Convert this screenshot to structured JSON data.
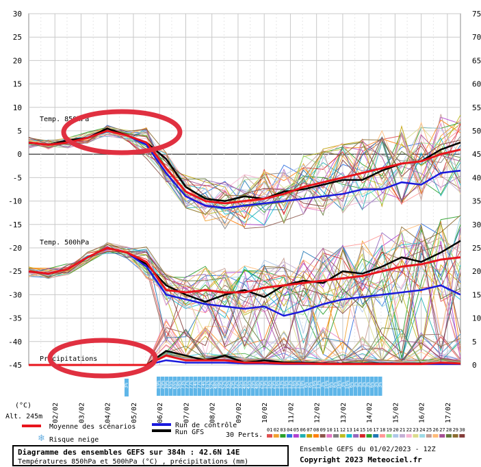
{
  "chart_data": {
    "type": "line",
    "x_start_day": 1,
    "x_dates": [
      "02/02",
      "03/02",
      "04/02",
      "05/02",
      "06/02",
      "07/02",
      "08/02",
      "09/02",
      "10/02",
      "11/02",
      "12/02",
      "13/02",
      "14/02",
      "15/02",
      "16/02",
      "17/02"
    ],
    "left_axis": {
      "ticks": [
        30,
        25,
        20,
        15,
        10,
        5,
        0,
        -5,
        -10,
        -15,
        -20,
        -25,
        -30,
        -35,
        -40,
        -45
      ],
      "ylim": [
        -45,
        30
      ]
    },
    "right_axis": {
      "ticks": [
        75,
        70,
        65,
        60,
        55,
        50,
        45,
        40,
        35,
        30,
        25,
        20,
        15,
        10,
        5,
        0
      ]
    },
    "labels": {
      "t850": "Temp. 850hPa",
      "t500": "Temp. 500hPa",
      "precip": "Précipitations",
      "unit": "(°C)",
      "altitude": "Alt. 245m"
    },
    "series": [
      {
        "name": "Moyenne des scénarios",
        "color": "#e8141c",
        "t850": [
          2.5,
          2.0,
          2.5,
          3.5,
          5.0,
          4.0,
          2.5,
          -3.0,
          -8.0,
          -10.0,
          -10.5,
          -10.0,
          -9.5,
          -8.5,
          -7.0,
          -6.0,
          -5.0,
          -4.0,
          -3.0,
          -2.0,
          -1.5,
          0.0,
          1.0
        ],
        "t500": [
          -25.0,
          -25.5,
          -24.5,
          -22.0,
          -20.0,
          -21.0,
          -23.0,
          -29.0,
          -29.5,
          -29.0,
          -29.5,
          -29.5,
          -28.5,
          -28.0,
          -27.5,
          -27.0,
          -26.5,
          -26.0,
          -25.0,
          -24.0,
          -23.5,
          -22.5,
          -22.0
        ],
        "precip": [
          0,
          0,
          0,
          0,
          0,
          0,
          0,
          2,
          1,
          1,
          1,
          0.5,
          0.5,
          0.3,
          0.3,
          0.2,
          0.2,
          0.2,
          0.2,
          0.2,
          0.2,
          0.5,
          0.3
        ]
      },
      {
        "name": "Run de contrôle",
        "color": "#1a1adc",
        "t850": [
          2.5,
          2.0,
          2.5,
          3.5,
          5.0,
          4.0,
          2.0,
          -4.0,
          -9.0,
          -11.0,
          -11.5,
          -11.0,
          -10.5,
          -10.0,
          -9.5,
          -9.0,
          -8.5,
          -7.5,
          -7.5,
          -6.0,
          -6.5,
          -4.0,
          -3.5
        ],
        "t500": [
          -25.0,
          -25.5,
          -24.5,
          -22.0,
          -20.0,
          -21.0,
          -24.0,
          -30.0,
          -31.0,
          -32.0,
          -32.5,
          -33.0,
          -32.5,
          -34.5,
          -33.5,
          -32.0,
          -31.0,
          -30.5,
          -30.0,
          -29.5,
          -29.0,
          -28.0,
          -30.0
        ],
        "precip": [
          0,
          0,
          0,
          0,
          0,
          0,
          0,
          1,
          0.5,
          0.5,
          0.5,
          0.3,
          0.3,
          0.2,
          0.2,
          0.2,
          0.2,
          0.2,
          0.2,
          0.2,
          0.2,
          0.2,
          0.2
        ]
      },
      {
        "name": "Run GFS",
        "color": "#000000",
        "t850": [
          2.5,
          2.0,
          3.0,
          3.5,
          5.5,
          4.0,
          2.5,
          -1.0,
          -7.0,
          -9.5,
          -10.0,
          -9.0,
          -9.5,
          -8.0,
          -7.5,
          -6.5,
          -5.5,
          -5.5,
          -3.5,
          -2.0,
          -1.5,
          1.0,
          2.5
        ],
        "t500": [
          -25.0,
          -25.5,
          -24.5,
          -22.0,
          -20.0,
          -21.0,
          -23.5,
          -28.0,
          -30.0,
          -31.5,
          -30.0,
          -29.0,
          -30.5,
          -28.0,
          -27.0,
          -27.5,
          -25.0,
          -25.5,
          -24.0,
          -22.0,
          -23.0,
          -21.0,
          -18.5
        ],
        "precip": [
          0,
          0,
          0,
          0,
          0,
          0,
          0,
          3,
          2,
          1,
          2,
          0.5,
          1,
          0.5,
          0.5,
          0.3,
          0.3,
          0.3,
          0.3,
          0.3,
          0.3,
          0.3,
          0.3
        ]
      }
    ],
    "perturbation_colors": [
      "#e05050",
      "#f0a030",
      "#2aa02a",
      "#3070e0",
      "#b040d0",
      "#20b0b0",
      "#c0a000",
      "#ff7f0e",
      "#8c564b",
      "#e377c2",
      "#7f7f7f",
      "#bcbd22",
      "#17becf",
      "#9467bd",
      "#d62728",
      "#2ca02c",
      "#1f77b4",
      "#ff9896",
      "#98df8a",
      "#aec7e8",
      "#c5b0d5",
      "#f7b6d2",
      "#dbdb8d",
      "#9edae5",
      "#c49c94",
      "#ffbb78",
      "#a55194",
      "#637939",
      "#8c6d31",
      "#843c39"
    ],
    "snow_risk_row1": [
      "19%",
      "29%",
      "39%",
      "45%",
      "65%",
      "58%",
      "73%",
      "77%",
      "77%",
      "74%",
      "77%",
      "74%",
      "61%",
      "52%",
      "48%",
      "39%",
      "52%",
      "35%",
      "29%",
      "32%",
      "35%",
      "48%",
      "45%",
      "39%",
      "48%",
      "29%",
      "19%",
      "16%",
      "29%",
      "16%",
      "13%",
      "16%",
      "13%",
      "16%",
      "19%",
      "10%",
      "6%",
      "6%",
      "16%",
      "13%",
      "3%",
      "16%",
      "6%",
      "6%",
      "16%",
      "3%",
      "16%",
      "6%",
      "3%",
      "3%",
      "3%",
      "3%",
      "6%",
      "3%",
      "3%"
    ],
    "snow_risk_row2_first": "3%",
    "legend": {
      "mean": "Moyenne des scénarios",
      "control": "Run de contrôle",
      "gfs": "Run GFS",
      "perts": "30 Perts.",
      "snow": "Risque neige",
      "pert_numbers": [
        "01",
        "02",
        "03",
        "04",
        "05",
        "06",
        "07",
        "08",
        "09",
        "10",
        "11",
        "12",
        "13",
        "14",
        "15",
        "16",
        "17",
        "18",
        "19",
        "20",
        "21",
        "22",
        "23",
        "24",
        "25",
        "26",
        "27",
        "28",
        "29",
        "30"
      ]
    },
    "footer": {
      "title": "Diagramme des ensembles GEFS sur 384h : 42.6N 14E",
      "subtitle": "Températures 850hPa et 500hPa (°C) , précipitations (mm)",
      "ensemble": "Ensemble GEFS du 01/02/2023 - 12Z",
      "copyright": "Copyright 2023 Meteociel.fr"
    },
    "annotations": {
      "circle_color": "#e03040"
    }
  }
}
